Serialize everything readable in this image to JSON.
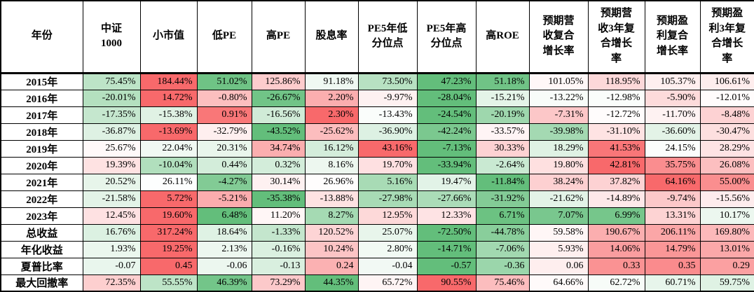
{
  "chart_data": {
    "type": "table",
    "title": "",
    "description": "Backtest performance comparison table of CSI-1000 and factor strategies by year, with per-row green-white-red heatmap conditional formatting",
    "columns": [
      "年份",
      "中证1000",
      "小市值",
      "低PE",
      "高PE",
      "股息率",
      "PE5年低分位点",
      "PE5年高分位点",
      "高ROE",
      "预期营收复合增长率",
      "预期营收3年复合增长率",
      "预期盈利复合增长率",
      "预期盈利3年复合增长率"
    ],
    "rows": [
      {
        "label": "2015年",
        "values": [
          "75.45%",
          "184.44%",
          "51.02%",
          "125.86%",
          "91.18%",
          "73.50%",
          "47.23%",
          "51.18%",
          "101.05%",
          "118.95%",
          "105.37%",
          "106.61%"
        ]
      },
      {
        "label": "2016年",
        "values": [
          "-20.01%",
          "14.72%",
          "-0.80%",
          "-26.67%",
          "2.20%",
          "-9.97%",
          "-28.04%",
          "-15.21%",
          "-13.22%",
          "-12.98%",
          "-5.90%",
          "-12.01%"
        ]
      },
      {
        "label": "2017年",
        "values": [
          "-17.35%",
          "-15.38%",
          "0.91%",
          "-16.56%",
          "2.30%",
          "-13.43%",
          "-24.54%",
          "-20.19%",
          "-7.31%",
          "-12.72%",
          "-11.70%",
          "-8.48%"
        ]
      },
      {
        "label": "2018年",
        "values": [
          "-36.87%",
          "-13.69%",
          "-32.79%",
          "-43.52%",
          "-25.62%",
          "-36.90%",
          "-42.24%",
          "-33.57%",
          "-39.98%",
          "-31.10%",
          "-36.60%",
          "-30.47%"
        ]
      },
      {
        "label": "2019年",
        "values": [
          "25.67%",
          "22.04%",
          "20.31%",
          "34.74%",
          "16.12%",
          "43.16%",
          "-7.13%",
          "30.33%",
          "18.29%",
          "41.53%",
          "24.15%",
          "28.29%"
        ]
      },
      {
        "label": "2020年",
        "values": [
          "19.39%",
          "-10.04%",
          "0.44%",
          "0.32%",
          "8.16%",
          "19.70%",
          "-33.94%",
          "-2.64%",
          "19.80%",
          "42.81%",
          "35.75%",
          "26.08%"
        ]
      },
      {
        "label": "2021年",
        "values": [
          "20.52%",
          "26.11%",
          "-4.27%",
          "30.14%",
          "26.96%",
          "5.16%",
          "19.47%",
          "-11.84%",
          "38.24%",
          "37.82%",
          "64.16%",
          "55.00%"
        ]
      },
      {
        "label": "2022年",
        "values": [
          "-21.58%",
          "5.72%",
          "-5.21%",
          "-35.38%",
          "-13.88%",
          "-27.98%",
          "-27.66%",
          "-31.92%",
          "-21.62%",
          "-14.89%",
          "-9.74%",
          "-15.56%"
        ]
      },
      {
        "label": "2023年",
        "values": [
          "12.45%",
          "19.60%",
          "6.48%",
          "11.20%",
          "8.27%",
          "12.95%",
          "12.33%",
          "6.71%",
          "7.07%",
          "6.99%",
          "13.31%",
          "10.17%"
        ]
      },
      {
        "label": "总收益",
        "values": [
          "16.76%",
          "317.24%",
          "18.64%",
          "-1.33%",
          "120.52%",
          "25.07%",
          "-72.50%",
          "-44.78%",
          "59.58%",
          "190.67%",
          "206.11%",
          "169.80%"
        ]
      },
      {
        "label": "年化收益",
        "values": [
          "1.93%",
          "19.25%",
          "2.13%",
          "-0.16%",
          "10.24%",
          "2.80%",
          "-14.71%",
          "-7.06%",
          "5.93%",
          "14.06%",
          "14.79%",
          "13.01%"
        ]
      },
      {
        "label": "夏普比率",
        "values": [
          "-0.07",
          "0.45",
          "-0.06",
          "-0.13",
          "0.24",
          "-0.04",
          "-0.57",
          "-0.36",
          "0.06",
          "0.33",
          "0.35",
          "0.29"
        ]
      },
      {
        "label": "最大回撤率",
        "values": [
          "72.35%",
          "55.55%",
          "46.39%",
          "73.29%",
          "44.35%",
          "65.72%",
          "90.55%",
          "75.46%",
          "64.66%",
          "62.72%",
          "60.71%",
          "59.75%"
        ]
      }
    ],
    "heatmap": {
      "scope": "per-row 3-color scale, midpoint at 50th percentile",
      "min_color": "#63BE7B",
      "mid_color": "#FFFFFF",
      "max_color": "#F8696B"
    },
    "layout_hints": {
      "grid": "all black 1px gridlines, thick rule under header",
      "header_bold": true,
      "values_align": "right"
    }
  }
}
